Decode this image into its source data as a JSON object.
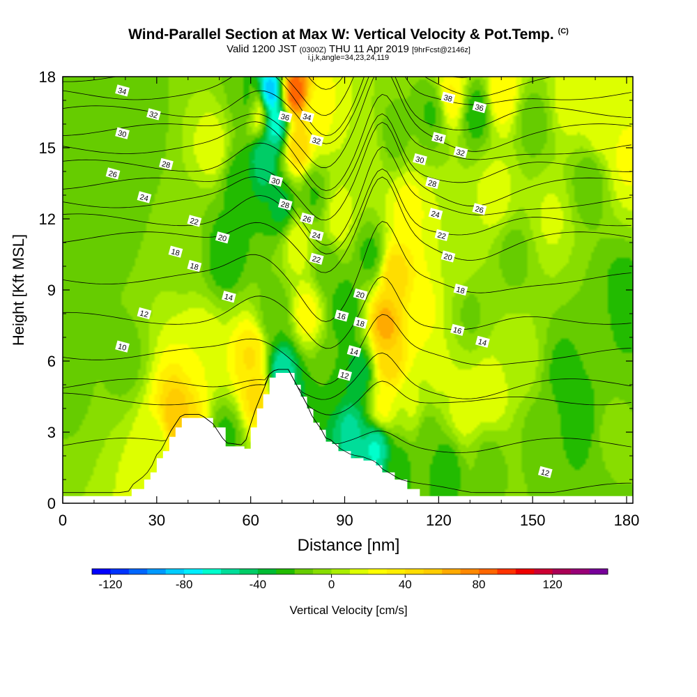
{
  "title": {
    "main": "Wind-Parallel Section at Max W: Vertical Velocity & Pot.Temp.",
    "copyright": "(C)",
    "valid_prefix": "Valid 1200 JST",
    "valid_utc": "(0300Z)",
    "valid_date": "THU 11 Apr 2019",
    "forecast": "[9hrFcst@2146z]",
    "indices": "i,j,k,angle=34,23,24,119"
  },
  "chart_data": {
    "type": "heatmap",
    "xlabel": "Distance [nm]",
    "ylabel": "Height [Kft MSL]",
    "xlim": [
      0,
      182
    ],
    "ylim": [
      0,
      18
    ],
    "x_ticks": [
      0,
      30,
      60,
      90,
      120,
      150,
      180
    ],
    "y_ticks": [
      0,
      3,
      6,
      9,
      12,
      15,
      18
    ],
    "grid": false,
    "colorbar": {
      "label": "Vertical Velocity [cm/s]",
      "tick_labels": [
        -120,
        -80,
        -40,
        0,
        40,
        80,
        120
      ],
      "min": -130,
      "max": 150,
      "step": 10,
      "colors": [
        "#0000ff",
        "#0033ff",
        "#0066ff",
        "#0099ff",
        "#00ccff",
        "#00eeff",
        "#00ffcc",
        "#00dd99",
        "#00cc66",
        "#00bb33",
        "#22bb00",
        "#66cc00",
        "#88dd00",
        "#aaee00",
        "#ddff00",
        "#ffff00",
        "#ffee00",
        "#ffdd00",
        "#ffcc00",
        "#ffaa00",
        "#ff8800",
        "#ff6600",
        "#ff3300",
        "#ee0000",
        "#cc0033",
        "#aa0055",
        "#990077",
        "#770099"
      ]
    },
    "vertical_velocity_field": {
      "background": 0,
      "cells": [
        {
          "x": 2,
          "z": 5.2,
          "w": -12
        },
        {
          "x": 14,
          "z": 12,
          "w": -18
        },
        {
          "x": 20,
          "z": 6,
          "w": -14
        },
        {
          "x": 22,
          "z": 16,
          "w": -20
        },
        {
          "x": 30,
          "z": 2.5,
          "w": 12
        },
        {
          "x": 36,
          "z": 3.6,
          "w": 60
        },
        {
          "x": 40,
          "z": 2.8,
          "w": 48
        },
        {
          "x": 40,
          "z": 11,
          "w": -8
        },
        {
          "x": 44,
          "z": 6.5,
          "w": 20
        },
        {
          "x": 48,
          "z": 15,
          "w": 18
        },
        {
          "x": 52,
          "z": 2.8,
          "w": -24
        },
        {
          "x": 52,
          "z": 10.5,
          "w": -30
        },
        {
          "x": 56,
          "z": 13.5,
          "w": -26
        },
        {
          "x": 60,
          "z": 16.8,
          "w": -28
        },
        {
          "x": 60,
          "z": 6.2,
          "w": 42
        },
        {
          "x": 62,
          "z": 4.5,
          "w": 46
        },
        {
          "x": 62,
          "z": 16.5,
          "w": 36
        },
        {
          "x": 64,
          "z": 14.5,
          "w": -50
        },
        {
          "x": 66,
          "z": 17.3,
          "w": -95
        },
        {
          "x": 68,
          "z": 16,
          "w": -70
        },
        {
          "x": 68,
          "z": 8,
          "w": -20
        },
        {
          "x": 70,
          "z": 12.5,
          "w": -35
        },
        {
          "x": 70,
          "z": 5.5,
          "w": -62
        },
        {
          "x": 72,
          "z": 4,
          "w": -36
        },
        {
          "x": 74,
          "z": 17.3,
          "w": 92
        },
        {
          "x": 75,
          "z": 15,
          "w": 52
        },
        {
          "x": 75,
          "z": 11,
          "w": 20
        },
        {
          "x": 78,
          "z": 8,
          "w": 28
        },
        {
          "x": 80,
          "z": 13,
          "w": -22
        },
        {
          "x": 82,
          "z": 16.5,
          "w": 22
        },
        {
          "x": 84,
          "z": 10,
          "w": -18
        },
        {
          "x": 86,
          "z": 5.5,
          "w": -20
        },
        {
          "x": 88,
          "z": 12,
          "w": 18
        },
        {
          "x": 90,
          "z": 8.2,
          "w": -30
        },
        {
          "x": 92,
          "z": 3,
          "w": -55
        },
        {
          "x": 95,
          "z": 5.5,
          "w": -40
        },
        {
          "x": 96,
          "z": 14.5,
          "w": 10
        },
        {
          "x": 98,
          "z": 10.5,
          "w": -24
        },
        {
          "x": 100,
          "z": 2.4,
          "w": -65
        },
        {
          "x": 102,
          "z": 4,
          "w": 26
        },
        {
          "x": 103,
          "z": 7.5,
          "w": 68
        },
        {
          "x": 104,
          "z": 6,
          "w": 50
        },
        {
          "x": 106,
          "z": 9.6,
          "w": 48
        },
        {
          "x": 106,
          "z": 15.5,
          "w": -14
        },
        {
          "x": 108,
          "z": 1.6,
          "w": -22
        },
        {
          "x": 110,
          "z": 12.5,
          "w": 24
        },
        {
          "x": 112,
          "z": 4,
          "w": 12
        },
        {
          "x": 114,
          "z": 8,
          "w": 26
        },
        {
          "x": 116,
          "z": 3,
          "w": -16
        },
        {
          "x": 118,
          "z": 16.5,
          "w": -22
        },
        {
          "x": 120,
          "z": 5.5,
          "w": 12
        },
        {
          "x": 122,
          "z": 1.5,
          "w": -28
        },
        {
          "x": 124,
          "z": 17.2,
          "w": 32
        },
        {
          "x": 126,
          "z": 10.5,
          "w": 8
        },
        {
          "x": 128,
          "z": 4,
          "w": 18
        },
        {
          "x": 130,
          "z": 8,
          "w": -12
        },
        {
          "x": 132,
          "z": 16.5,
          "w": -28
        },
        {
          "x": 136,
          "z": 4.5,
          "w": 20
        },
        {
          "x": 136,
          "z": 1.8,
          "w": -14
        },
        {
          "x": 138,
          "z": 13,
          "w": 16
        },
        {
          "x": 140,
          "z": 17.2,
          "w": 30
        },
        {
          "x": 144,
          "z": 10.5,
          "w": -14
        },
        {
          "x": 146,
          "z": 6,
          "w": 8
        },
        {
          "x": 150,
          "z": 16,
          "w": -16
        },
        {
          "x": 152,
          "z": 3,
          "w": -14
        },
        {
          "x": 156,
          "z": 12,
          "w": 12
        },
        {
          "x": 160,
          "z": 5.5,
          "w": -24
        },
        {
          "x": 162,
          "z": 17,
          "w": 16
        },
        {
          "x": 165,
          "z": 3.5,
          "w": -26
        },
        {
          "x": 168,
          "z": 13.5,
          "w": -18
        },
        {
          "x": 170,
          "z": 8,
          "w": -10
        },
        {
          "x": 172,
          "z": 16,
          "w": 20
        },
        {
          "x": 175,
          "z": 3,
          "w": -8
        },
        {
          "x": 178,
          "z": 8.5,
          "w": -28
        },
        {
          "x": 180,
          "z": 14.5,
          "w": 22
        }
      ]
    },
    "terrain_profile": {
      "x": [
        0,
        22,
        22,
        26,
        28,
        30,
        32,
        34,
        36,
        38,
        40,
        44,
        48,
        52,
        58,
        60,
        62,
        64,
        66,
        68,
        72,
        74,
        76,
        78,
        80,
        82,
        84,
        86,
        88,
        92,
        96,
        100,
        102,
        106,
        110,
        114,
        182
      ],
      "z": [
        0.3,
        0.3,
        0.6,
        1.0,
        1.3,
        1.9,
        2.2,
        2.8,
        3.2,
        3.6,
        3.6,
        3.6,
        3.2,
        2.4,
        2.3,
        3.2,
        4.0,
        4.6,
        5.3,
        5.5,
        5.5,
        5.0,
        4.5,
        4.0,
        3.4,
        3.1,
        2.6,
        2.5,
        2.2,
        1.9,
        1.8,
        1.6,
        1.3,
        1.0,
        0.6,
        0.3,
        0.3
      ]
    },
    "potential_temperature_contours": {
      "levels": [
        4,
        6,
        8,
        10,
        12,
        14,
        16,
        18,
        20,
        22,
        24,
        26,
        28,
        30,
        32,
        34,
        36,
        38
      ],
      "labels": [
        {
          "text": "34",
          "x": 19,
          "z": 17.4
        },
        {
          "text": "32",
          "x": 29,
          "z": 16.4
        },
        {
          "text": "30",
          "x": 19,
          "z": 15.6
        },
        {
          "text": "28",
          "x": 33,
          "z": 14.3
        },
        {
          "text": "26",
          "x": 16,
          "z": 13.9
        },
        {
          "text": "24",
          "x": 26,
          "z": 12.9
        },
        {
          "text": "22",
          "x": 42,
          "z": 11.9
        },
        {
          "text": "20",
          "x": 51,
          "z": 11.2
        },
        {
          "text": "18",
          "x": 36,
          "z": 10.6
        },
        {
          "text": "18",
          "x": 42,
          "z": 10.0
        },
        {
          "text": "14",
          "x": 53,
          "z": 8.7
        },
        {
          "text": "12",
          "x": 26,
          "z": 8.0
        },
        {
          "text": "10",
          "x": 19,
          "z": 6.6
        },
        {
          "text": "36",
          "x": 71,
          "z": 16.3
        },
        {
          "text": "34",
          "x": 78,
          "z": 16.3
        },
        {
          "text": "32",
          "x": 81,
          "z": 15.3
        },
        {
          "text": "30",
          "x": 68,
          "z": 13.6
        },
        {
          "text": "28",
          "x": 71,
          "z": 12.6
        },
        {
          "text": "26",
          "x": 78,
          "z": 12.0
        },
        {
          "text": "24",
          "x": 81,
          "z": 11.3
        },
        {
          "text": "22",
          "x": 81,
          "z": 10.3
        },
        {
          "text": "20",
          "x": 95,
          "z": 8.8
        },
        {
          "text": "16",
          "x": 89,
          "z": 7.9
        },
        {
          "text": "18",
          "x": 95,
          "z": 7.6
        },
        {
          "text": "14",
          "x": 93,
          "z": 6.4
        },
        {
          "text": "12",
          "x": 90,
          "z": 5.4
        },
        {
          "text": "38",
          "x": 123,
          "z": 17.1
        },
        {
          "text": "36",
          "x": 133,
          "z": 16.7
        },
        {
          "text": "34",
          "x": 120,
          "z": 15.4
        },
        {
          "text": "32",
          "x": 127,
          "z": 14.8
        },
        {
          "text": "30",
          "x": 114,
          "z": 14.5
        },
        {
          "text": "28",
          "x": 118,
          "z": 13.5
        },
        {
          "text": "26",
          "x": 133,
          "z": 12.4
        },
        {
          "text": "24",
          "x": 119,
          "z": 12.2
        },
        {
          "text": "22",
          "x": 121,
          "z": 11.3
        },
        {
          "text": "20",
          "x": 123,
          "z": 10.4
        },
        {
          "text": "18",
          "x": 127,
          "z": 9.0
        },
        {
          "text": "16",
          "x": 126,
          "z": 7.3
        },
        {
          "text": "14",
          "x": 134,
          "z": 6.8
        },
        {
          "text": "12",
          "x": 154,
          "z": 1.3
        }
      ]
    }
  }
}
